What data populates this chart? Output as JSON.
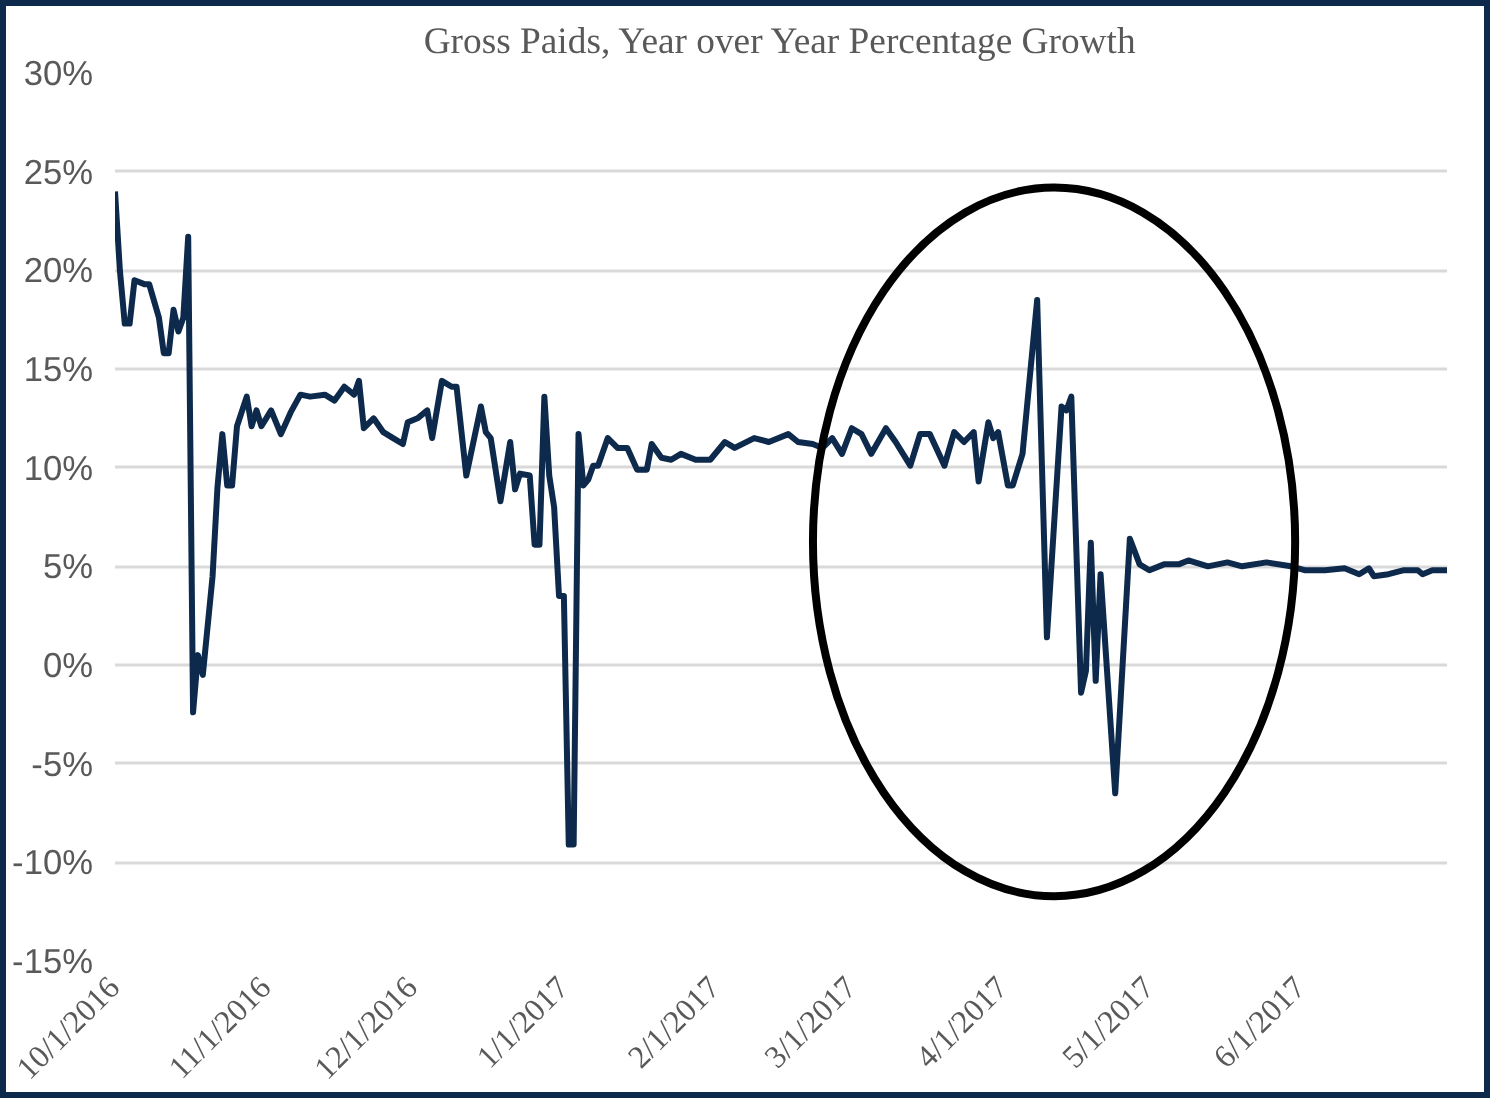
{
  "chart_data": {
    "type": "line",
    "title": "Gross Paids, Year over Year Percentage Growth",
    "x": [
      "2016-10-01",
      "2016-10-02",
      "2016-10-03",
      "2016-10-04",
      "2016-10-05",
      "2016-10-07",
      "2016-10-08",
      "2016-10-10",
      "2016-10-11",
      "2016-10-12",
      "2016-10-13",
      "2016-10-14",
      "2016-10-15",
      "2016-10-16",
      "2016-10-17",
      "2016-10-18",
      "2016-10-19",
      "2016-10-21",
      "2016-10-22",
      "2016-10-23",
      "2016-10-24",
      "2016-10-25",
      "2016-10-26",
      "2016-10-28",
      "2016-10-29",
      "2016-10-30",
      "2016-10-31",
      "2016-11-02",
      "2016-11-04",
      "2016-11-06",
      "2016-11-08",
      "2016-11-10",
      "2016-11-13",
      "2016-11-15",
      "2016-11-17",
      "2016-11-19",
      "2016-11-20",
      "2016-11-21",
      "2016-11-23",
      "2016-11-25",
      "2016-11-27",
      "2016-11-29",
      "2016-11-30",
      "2016-12-02",
      "2016-12-04",
      "2016-12-05",
      "2016-12-07",
      "2016-12-09",
      "2016-12-10",
      "2016-12-12",
      "2016-12-15",
      "2016-12-16",
      "2016-12-17",
      "2016-12-19",
      "2016-12-21",
      "2016-12-22",
      "2016-12-23",
      "2016-12-25",
      "2016-12-26",
      "2016-12-27",
      "2016-12-28",
      "2016-12-29",
      "2016-12-30",
      "2016-12-31",
      "2017-01-01",
      "2017-01-02",
      "2017-01-03",
      "2017-01-04",
      "2017-01-05",
      "2017-01-06",
      "2017-01-07",
      "2017-01-08",
      "2017-01-10",
      "2017-01-12",
      "2017-01-14",
      "2017-01-16",
      "2017-01-18",
      "2017-01-19",
      "2017-01-21",
      "2017-01-23",
      "2017-01-25",
      "2017-01-28",
      "2017-01-31",
      "2017-02-03",
      "2017-02-05",
      "2017-02-09",
      "2017-02-12",
      "2017-02-16",
      "2017-02-18",
      "2017-02-21",
      "2017-02-23",
      "2017-02-25",
      "2017-02-27",
      "2017-03-01",
      "2017-03-03",
      "2017-03-05",
      "2017-03-08",
      "2017-03-10",
      "2017-03-13",
      "2017-03-15",
      "2017-03-17",
      "2017-03-20",
      "2017-03-22",
      "2017-03-24",
      "2017-03-26",
      "2017-03-27",
      "2017-03-29",
      "2017-03-30",
      "2017-03-31",
      "2017-04-02",
      "2017-04-03",
      "2017-04-05",
      "2017-04-08",
      "2017-04-10",
      "2017-04-13",
      "2017-04-14",
      "2017-04-15",
      "2017-04-17",
      "2017-04-18",
      "2017-04-19",
      "2017-04-20",
      "2017-04-21",
      "2017-04-24",
      "2017-04-27",
      "2017-04-29",
      "2017-05-01",
      "2017-05-04",
      "2017-05-07",
      "2017-05-09",
      "2017-05-13",
      "2017-05-17",
      "2017-05-20",
      "2017-05-25",
      "2017-05-30",
      "2017-06-02",
      "2017-06-06",
      "2017-06-10",
      "2017-06-13",
      "2017-06-15",
      "2017-06-16",
      "2017-06-19",
      "2017-06-22",
      "2017-06-25",
      "2017-06-26",
      "2017-06-28",
      "2017-07-01"
    ],
    "series": [
      {
        "color": "#0d2a4d",
        "values": [
          24.0,
          20.0,
          17.3,
          17.3,
          19.5,
          19.3,
          19.3,
          17.6,
          15.8,
          15.8,
          18.0,
          16.9,
          17.6,
          21.7,
          -2.4,
          0.5,
          -0.5,
          4.5,
          9.0,
          11.7,
          9.1,
          9.1,
          12.1,
          13.6,
          12.1,
          12.9,
          12.1,
          12.9,
          11.7,
          12.8,
          13.7,
          13.6,
          13.7,
          13.4,
          14.1,
          13.7,
          14.4,
          12.0,
          12.5,
          11.8,
          11.5,
          11.2,
          12.3,
          12.5,
          12.9,
          11.5,
          14.4,
          14.1,
          14.1,
          9.6,
          13.1,
          11.8,
          11.5,
          8.3,
          11.3,
          8.9,
          9.7,
          9.6,
          6.1,
          6.1,
          13.6,
          9.6,
          8.0,
          3.5,
          3.5,
          -9.1,
          -9.1,
          11.7,
          9.1,
          9.4,
          10.1,
          10.1,
          11.5,
          11.0,
          11.0,
          9.9,
          9.9,
          11.2,
          10.5,
          10.4,
          10.7,
          10.4,
          10.4,
          11.3,
          11.0,
          11.5,
          11.3,
          11.7,
          11.3,
          11.2,
          11.0,
          11.5,
          10.7,
          12.0,
          11.7,
          10.7,
          12.0,
          11.3,
          10.1,
          11.7,
          11.7,
          10.1,
          11.8,
          11.3,
          11.8,
          9.3,
          12.3,
          11.5,
          11.8,
          9.1,
          9.1,
          10.7,
          18.5,
          1.4,
          13.1,
          12.9,
          13.6,
          -1.4,
          -0.3,
          6.2,
          -0.8,
          4.6,
          -6.5,
          6.4,
          5.1,
          4.8,
          5.1,
          5.1,
          5.3,
          5.0,
          5.2,
          5.0,
          5.2,
          5.0,
          4.8,
          4.8,
          4.9,
          4.6,
          4.9,
          4.5,
          4.6,
          4.8,
          4.8,
          4.6,
          4.8,
          4.8
        ]
      }
    ],
    "xlim": [
      "2016-10-01",
      "2017-07-01"
    ],
    "xticks": [
      {
        "value": "2016-10-01",
        "label": "10/1/2016"
      },
      {
        "value": "2016-11-01",
        "label": "11/1/2016"
      },
      {
        "value": "2016-12-01",
        "label": "12/1/2016"
      },
      {
        "value": "2017-01-01",
        "label": "1/1/2017"
      },
      {
        "value": "2017-02-01",
        "label": "2/1/2017"
      },
      {
        "value": "2017-03-01",
        "label": "3/1/2017"
      },
      {
        "value": "2017-04-01",
        "label": "4/1/2017"
      },
      {
        "value": "2017-05-01",
        "label": "5/1/2017"
      },
      {
        "value": "2017-06-01",
        "label": "6/1/2017"
      }
    ],
    "ylim": [
      -15,
      30
    ],
    "yticks": [
      {
        "value": -15,
        "label": "-15%"
      },
      {
        "value": -10,
        "label": "-10%"
      },
      {
        "value": -5,
        "label": "-5%"
      },
      {
        "value": 0,
        "label": "0%"
      },
      {
        "value": 5,
        "label": "5%"
      },
      {
        "value": 10,
        "label": "10%"
      },
      {
        "value": 15,
        "label": "15%"
      },
      {
        "value": 20,
        "label": "20%"
      },
      {
        "value": 25,
        "label": "25%"
      },
      {
        "value": 30,
        "label": "30%"
      }
    ],
    "grid": "y",
    "line_style": "solid"
  }
}
